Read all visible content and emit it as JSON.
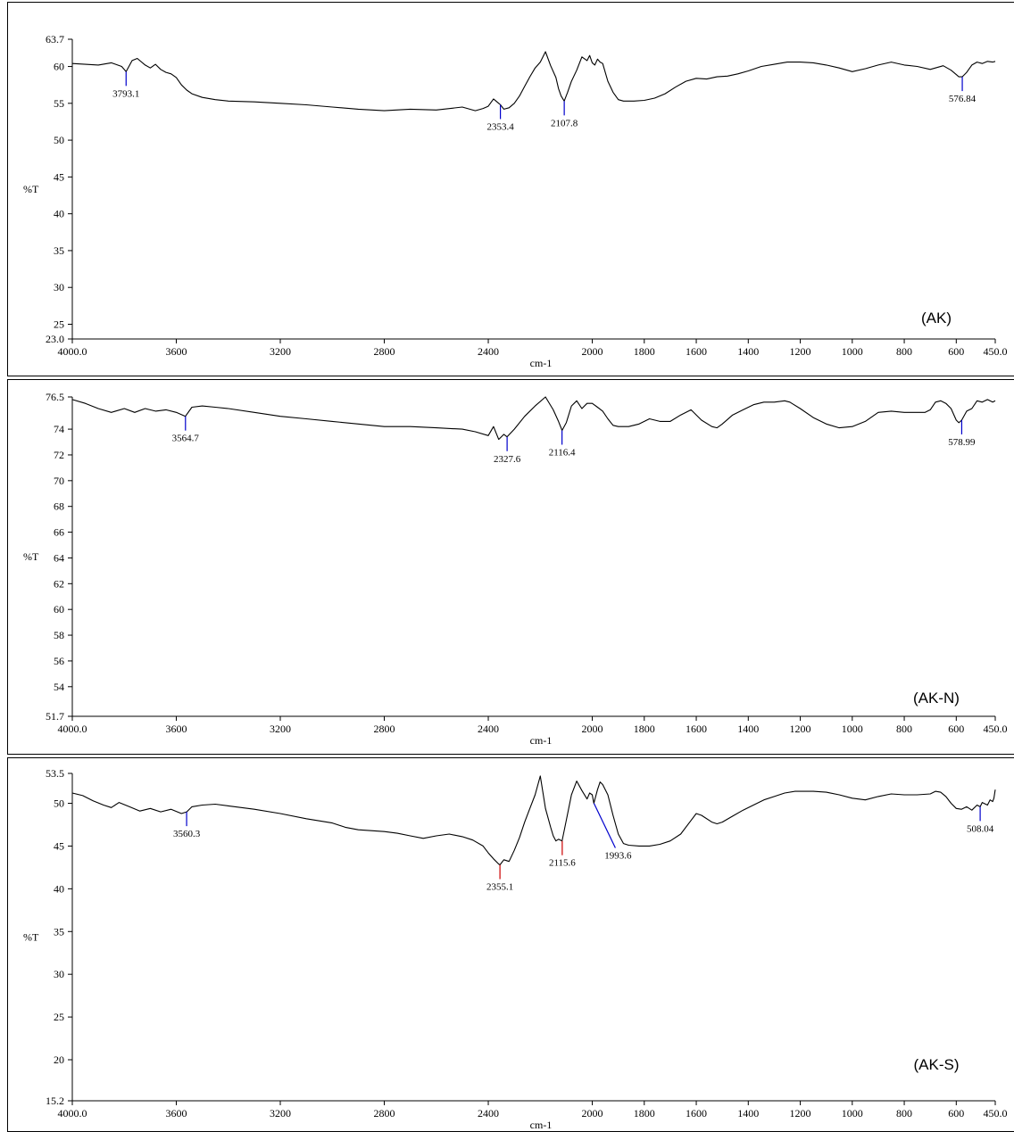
{
  "chart_data": [
    {
      "type": "line",
      "sample_label": "(AK)",
      "xlabel": "cm-1",
      "ylabel": "%T",
      "xlim": [
        4000.0,
        450.0
      ],
      "ylim": [
        23.0,
        63.7
      ],
      "x_tick_labels": [
        "4000.0",
        "3600",
        "3200",
        "2800",
        "2400",
        "2000",
        "1600",
        "1200",
        "800",
        "450.0",
        "1800",
        "1400",
        "1000",
        "600"
      ],
      "x_ticks": [
        4000,
        3600,
        3200,
        2800,
        2400,
        2000,
        1800,
        1600,
        1400,
        1200,
        1000,
        800,
        600,
        450
      ],
      "x_tick_text": [
        "4000.0",
        "3600",
        "3200",
        "2800",
        "2400",
        "2000",
        "1800",
        "1600",
        "1400",
        "1200",
        "1000",
        "800",
        "600",
        "450.0"
      ],
      "y_ticks": [
        23.0,
        25,
        30,
        35,
        40,
        45,
        50,
        55,
        60,
        63.7
      ],
      "y_tick_text": [
        "23.0",
        "25",
        "30",
        "35",
        "40",
        "45",
        "50",
        "55",
        "60",
        "63.7"
      ],
      "peaks": [
        {
          "label": "3793.1",
          "x": 3793.1,
          "y": 59.3,
          "color": "#0000cc"
        },
        {
          "label": "2353.4",
          "x": 2353.4,
          "y": 54.8,
          "color": "#0000cc"
        },
        {
          "label": "2107.8",
          "x": 2107.8,
          "y": 55.3,
          "color": "#0000cc"
        },
        {
          "label": "576.84",
          "x": 576.84,
          "y": 58.6,
          "color": "#0000cc"
        }
      ],
      "series": {
        "x": [
          4000,
          3950,
          3900,
          3850,
          3810,
          3793,
          3770,
          3750,
          3720,
          3700,
          3680,
          3660,
          3640,
          3620,
          3600,
          3580,
          3560,
          3540,
          3500,
          3450,
          3400,
          3300,
          3200,
          3100,
          3000,
          2900,
          2800,
          2700,
          2600,
          2500,
          2450,
          2420,
          2400,
          2380,
          2360,
          2353,
          2340,
          2320,
          2300,
          2280,
          2260,
          2240,
          2220,
          2200,
          2180,
          2160,
          2140,
          2130,
          2120,
          2108,
          2095,
          2080,
          2060,
          2040,
          2020,
          2010,
          2000,
          1990,
          1980,
          1970,
          1960,
          1940,
          1920,
          1900,
          1880,
          1860,
          1840,
          1800,
          1760,
          1720,
          1680,
          1640,
          1600,
          1560,
          1520,
          1480,
          1440,
          1400,
          1350,
          1300,
          1250,
          1200,
          1150,
          1100,
          1050,
          1000,
          950,
          900,
          850,
          800,
          750,
          700,
          650,
          620,
          600,
          590,
          577,
          560,
          540,
          520,
          500,
          480,
          460,
          450
        ],
        "y": [
          60.4,
          60.3,
          60.2,
          60.5,
          60.0,
          59.3,
          60.8,
          61.1,
          60.2,
          59.8,
          60.3,
          59.6,
          59.2,
          59.0,
          58.5,
          57.5,
          56.8,
          56.3,
          55.8,
          55.5,
          55.3,
          55.2,
          55.0,
          54.8,
          54.5,
          54.2,
          54.0,
          54.2,
          54.1,
          54.5,
          54.0,
          54.3,
          54.6,
          55.6,
          55.0,
          54.8,
          54.2,
          54.4,
          55.0,
          56.0,
          57.3,
          58.6,
          59.8,
          60.6,
          62.0,
          60.1,
          58.5,
          57.0,
          56.0,
          55.3,
          56.5,
          58.0,
          59.5,
          61.3,
          60.8,
          61.5,
          60.5,
          60.2,
          61.0,
          60.6,
          60.4,
          58.0,
          56.5,
          55.5,
          55.3,
          55.3,
          55.3,
          55.4,
          55.7,
          56.3,
          57.2,
          58.0,
          58.4,
          58.3,
          58.6,
          58.7,
          59.0,
          59.4,
          60.0,
          60.3,
          60.6,
          60.6,
          60.5,
          60.2,
          59.8,
          59.3,
          59.7,
          60.2,
          60.6,
          60.2,
          60.0,
          59.6,
          60.1,
          59.5,
          58.9,
          58.6,
          58.6,
          59.2,
          60.2,
          60.6,
          60.4,
          60.7,
          60.6,
          60.7
        ]
      }
    },
    {
      "type": "line",
      "sample_label": "(AK-N)",
      "xlabel": "cm-1",
      "ylabel": "%T",
      "xlim": [
        4000.0,
        450.0
      ],
      "ylim": [
        51.7,
        76.5
      ],
      "x_ticks": [
        4000,
        3600,
        3200,
        2800,
        2400,
        2000,
        1800,
        1600,
        1400,
        1200,
        1000,
        800,
        600,
        450
      ],
      "x_tick_text": [
        "4000.0",
        "3600",
        "3200",
        "2800",
        "2400",
        "2000",
        "1800",
        "1600",
        "1400",
        "1200",
        "1000",
        "800",
        "600",
        "450.0"
      ],
      "y_ticks": [
        51.7,
        54,
        56,
        58,
        60,
        62,
        64,
        66,
        68,
        70,
        72,
        74,
        76.5
      ],
      "y_tick_text": [
        "51.7",
        "54",
        "56",
        "58",
        "60",
        "62",
        "64",
        "66",
        "68",
        "70",
        "72",
        "74",
        "76.5"
      ],
      "peaks": [
        {
          "label": "3564.7",
          "x": 3564.7,
          "y": 75.0,
          "color": "#0000cc"
        },
        {
          "label": "2327.6",
          "x": 2327.6,
          "y": 73.4,
          "color": "#0000cc"
        },
        {
          "label": "2116.4",
          "x": 2116.4,
          "y": 73.9,
          "color": "#0000cc"
        },
        {
          "label": "578.99",
          "x": 578.99,
          "y": 74.7,
          "color": "#0000cc"
        }
      ],
      "series": {
        "x": [
          4000,
          3950,
          3900,
          3850,
          3800,
          3760,
          3720,
          3680,
          3640,
          3600,
          3565,
          3540,
          3500,
          3450,
          3400,
          3300,
          3200,
          3100,
          3000,
          2900,
          2800,
          2700,
          2600,
          2500,
          2450,
          2400,
          2380,
          2360,
          2340,
          2328,
          2300,
          2260,
          2220,
          2180,
          2150,
          2130,
          2116,
          2100,
          2080,
          2060,
          2040,
          2020,
          2000,
          1980,
          1960,
          1940,
          1920,
          1900,
          1860,
          1820,
          1780,
          1740,
          1700,
          1660,
          1620,
          1580,
          1540,
          1520,
          1500,
          1460,
          1420,
          1380,
          1340,
          1300,
          1260,
          1240,
          1200,
          1150,
          1100,
          1050,
          1000,
          950,
          900,
          850,
          800,
          760,
          720,
          700,
          680,
          660,
          640,
          620,
          600,
          590,
          579,
          560,
          540,
          520,
          500,
          480,
          460,
          450
        ],
        "y": [
          76.3,
          76.0,
          75.6,
          75.3,
          75.6,
          75.3,
          75.6,
          75.4,
          75.5,
          75.3,
          75.0,
          75.7,
          75.8,
          75.7,
          75.6,
          75.3,
          75.0,
          74.8,
          74.6,
          74.4,
          74.2,
          74.2,
          74.1,
          74.0,
          73.8,
          73.5,
          74.2,
          73.2,
          73.6,
          73.4,
          74.0,
          75.0,
          75.8,
          76.5,
          75.5,
          74.6,
          73.9,
          74.5,
          75.8,
          76.2,
          75.6,
          76.0,
          76.0,
          75.7,
          75.4,
          74.8,
          74.3,
          74.2,
          74.2,
          74.4,
          74.8,
          74.6,
          74.6,
          75.1,
          75.5,
          74.7,
          74.2,
          74.1,
          74.4,
          75.1,
          75.5,
          75.9,
          76.1,
          76.1,
          76.2,
          76.1,
          75.6,
          74.9,
          74.4,
          74.1,
          74.2,
          74.6,
          75.3,
          75.4,
          75.3,
          75.3,
          75.3,
          75.5,
          76.1,
          76.2,
          76.0,
          75.6,
          74.7,
          74.5,
          74.7,
          75.4,
          75.6,
          76.2,
          76.1,
          76.3,
          76.1,
          76.2
        ]
      }
    },
    {
      "type": "line",
      "sample_label": "(AK-S)",
      "xlabel": "cm-1",
      "ylabel": "%T",
      "xlim": [
        4000.0,
        450.0
      ],
      "ylim": [
        15.2,
        53.5
      ],
      "x_ticks": [
        4000,
        3600,
        3200,
        2800,
        2400,
        2000,
        1800,
        1600,
        1400,
        1200,
        1000,
        800,
        600,
        450
      ],
      "x_tick_text": [
        "4000.0",
        "3600",
        "3200",
        "2800",
        "2400",
        "2000",
        "1800",
        "1600",
        "1400",
        "1200",
        "1000",
        "800",
        "600",
        "450.0"
      ],
      "y_ticks": [
        15.2,
        20,
        25,
        30,
        35,
        40,
        45,
        50,
        53.5
      ],
      "y_tick_text": [
        "15.2",
        "20",
        "25",
        "30",
        "35",
        "40",
        "45",
        "50",
        "53.5"
      ],
      "peaks": [
        {
          "label": "3560.3",
          "x": 3560.3,
          "y": 49.0,
          "color": "#0000cc"
        },
        {
          "label": "2355.1",
          "x": 2355.1,
          "y": 42.8,
          "color": "#cc0000"
        },
        {
          "label": "2115.6",
          "x": 2115.6,
          "y": 45.6,
          "color": "#cc0000"
        },
        {
          "label": "1993.6",
          "x": 1993.6,
          "y": 50.0,
          "color": "#0000cc"
        },
        {
          "label": "508.04",
          "x": 508.04,
          "y": 49.6,
          "color": "#0000cc"
        }
      ],
      "series": {
        "x": [
          4000,
          3960,
          3920,
          3880,
          3850,
          3820,
          3780,
          3740,
          3700,
          3660,
          3620,
          3580,
          3560,
          3540,
          3500,
          3450,
          3400,
          3300,
          3200,
          3100,
          3000,
          2950,
          2900,
          2850,
          2800,
          2750,
          2700,
          2650,
          2600,
          2550,
          2500,
          2460,
          2420,
          2400,
          2380,
          2360,
          2355,
          2340,
          2320,
          2300,
          2280,
          2260,
          2240,
          2220,
          2200,
          2180,
          2160,
          2150,
          2140,
          2130,
          2116,
          2100,
          2080,
          2060,
          2040,
          2020,
          2010,
          2000,
          1994,
          1980,
          1970,
          1960,
          1940,
          1920,
          1900,
          1880,
          1860,
          1820,
          1780,
          1740,
          1700,
          1660,
          1620,
          1600,
          1580,
          1540,
          1520,
          1500,
          1460,
          1420,
          1380,
          1340,
          1300,
          1260,
          1220,
          1200,
          1150,
          1100,
          1050,
          1000,
          950,
          900,
          850,
          800,
          750,
          700,
          680,
          660,
          640,
          620,
          600,
          580,
          560,
          540,
          520,
          508,
          500,
          480,
          470,
          460,
          455,
          450
        ],
        "y": [
          51.2,
          50.9,
          50.3,
          49.8,
          49.5,
          50.1,
          49.6,
          49.1,
          49.4,
          49.0,
          49.3,
          48.8,
          49.0,
          49.6,
          49.8,
          49.9,
          49.7,
          49.3,
          48.8,
          48.2,
          47.7,
          47.2,
          46.9,
          46.8,
          46.7,
          46.5,
          46.2,
          45.9,
          46.2,
          46.4,
          46.1,
          45.7,
          45.0,
          44.2,
          43.5,
          42.9,
          42.8,
          43.4,
          43.2,
          44.5,
          46.0,
          47.8,
          49.4,
          51.0,
          53.2,
          49.4,
          47.2,
          46.2,
          45.6,
          45.8,
          45.6,
          48.0,
          51.0,
          52.6,
          51.5,
          50.5,
          51.2,
          51.0,
          50.0,
          51.6,
          52.5,
          52.2,
          51.0,
          48.6,
          46.4,
          45.3,
          45.1,
          45.0,
          45.0,
          45.2,
          45.6,
          46.4,
          48.0,
          48.8,
          48.6,
          47.8,
          47.6,
          47.8,
          48.5,
          49.2,
          49.8,
          50.4,
          50.8,
          51.2,
          51.4,
          51.4,
          51.4,
          51.3,
          51.0,
          50.6,
          50.4,
          50.8,
          51.1,
          51.0,
          51.0,
          51.1,
          51.4,
          51.3,
          50.8,
          50.0,
          49.4,
          49.3,
          49.6,
          49.2,
          49.8,
          49.6,
          50.1,
          49.8,
          50.4,
          50.2,
          50.6,
          51.6
        ]
      }
    }
  ]
}
